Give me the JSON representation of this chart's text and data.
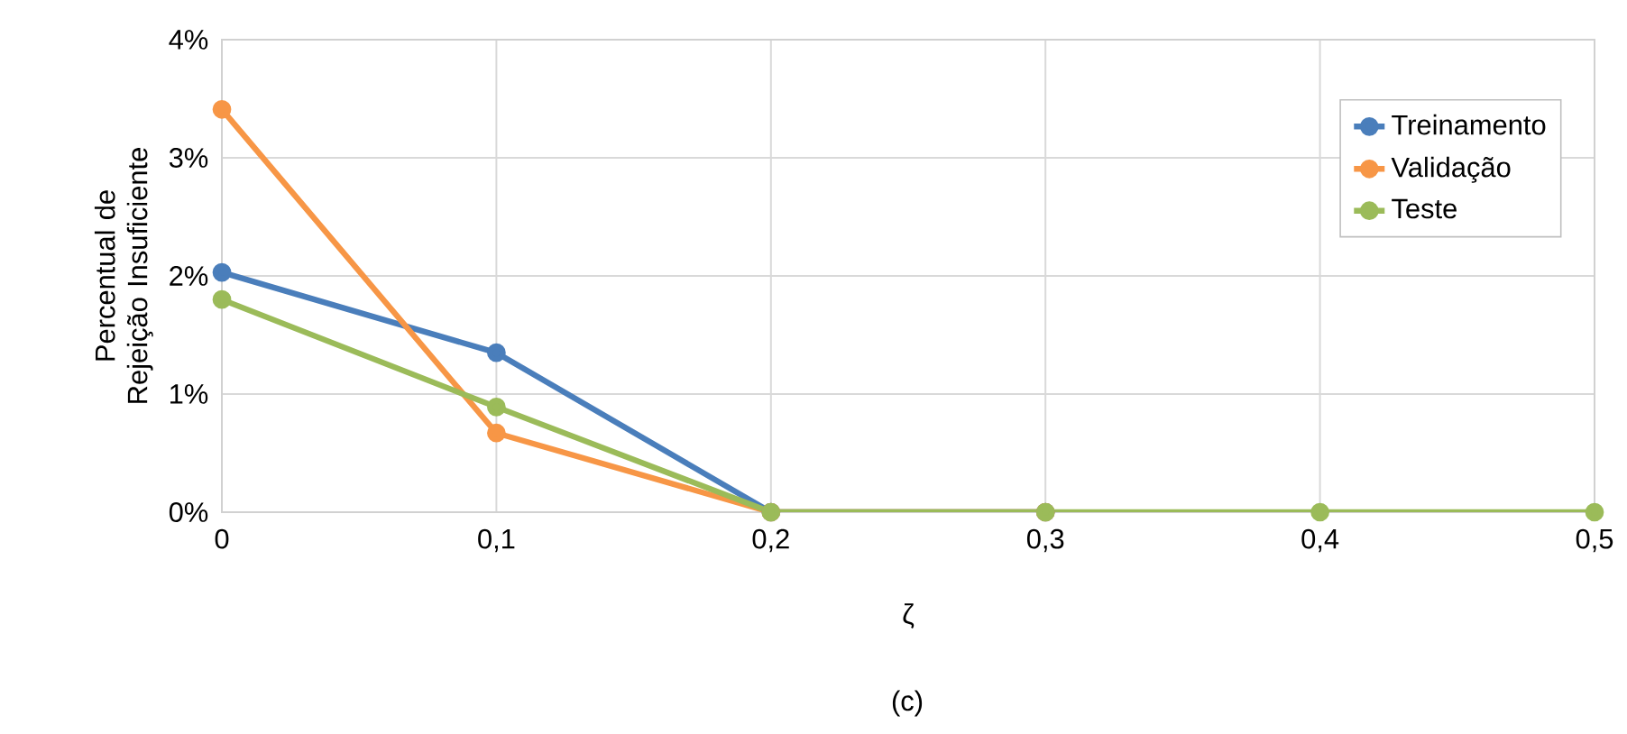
{
  "chart_data": {
    "type": "line",
    "xlabel": "ζ",
    "ylabel": "Percentual de Rejeição Insuficiente",
    "x": [
      0,
      0.1,
      0.2,
      0.3,
      0.4,
      0.5
    ],
    "series": [
      {
        "name": "Treinamento",
        "color": "#4a7ebb",
        "values": [
          2.03,
          1.35,
          0,
          0,
          null,
          null
        ]
      },
      {
        "name": "Validação",
        "color": "#f79646",
        "values": [
          3.41,
          0.67,
          0,
          0,
          null,
          null
        ]
      },
      {
        "name": "Teste",
        "color": "#9bbb59",
        "values": [
          1.8,
          0.89,
          0,
          0,
          0,
          0
        ]
      }
    ],
    "xlim": [
      0,
      0.5
    ],
    "xticks": [
      0,
      {
        "value": 0.1,
        "label": "0,1"
      },
      {
        "value": 0.2,
        "label": "0,2"
      },
      {
        "value": 0.3,
        "label": "0,3"
      },
      {
        "value": 0.4,
        "label": "0,4"
      },
      {
        "value": 0.5,
        "label": "0,5"
      }
    ],
    "ylim": [
      0,
      4
    ],
    "yticks": [
      {
        "value": 0,
        "label": "0%"
      },
      {
        "value": 1,
        "label": "1%"
      },
      {
        "value": 2,
        "label": "2%"
      },
      {
        "value": 3,
        "label": "3%"
      },
      {
        "value": 4,
        "label": "4%"
      }
    ],
    "grid": true,
    "legend": "top right",
    "marker": "circle",
    "line_style": "solid",
    "annotations": [
      "(c)"
    ]
  }
}
